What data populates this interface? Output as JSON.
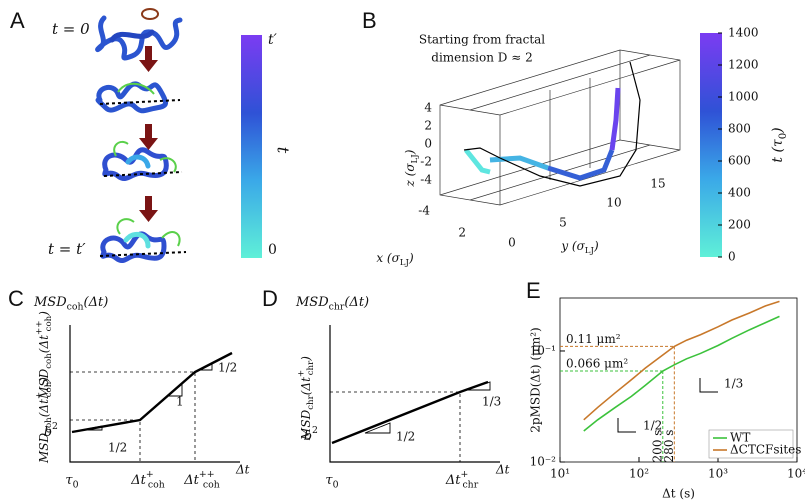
{
  "panel_labels": [
    "A",
    "B",
    "C",
    "D",
    "E"
  ],
  "panel_a": {
    "t_start": "t = 0",
    "t_end": "t = t′",
    "colorbar": {
      "label": "t",
      "top": "t′",
      "bottom": "0"
    }
  },
  "panel_b": {
    "annotation": [
      "Starting from fractal",
      "dimension D ≈ 2"
    ],
    "z_label": [
      {
        "text": "z (σ"
      },
      {
        "sub": "LJ"
      },
      {
        "text": ")"
      }
    ],
    "x_label": [
      {
        "text": "x (σ"
      },
      {
        "sub": "LJ"
      },
      {
        "text": ")"
      }
    ],
    "y_label": [
      {
        "text": "y (σ"
      },
      {
        "sub": "LJ"
      },
      {
        "text": ")"
      }
    ],
    "z_ticks": [
      "4",
      "2",
      "0",
      "-2",
      "-4"
    ],
    "x_ticks": [
      "-4",
      "2"
    ],
    "y_ticks": [
      "0",
      "5",
      "10",
      "15"
    ],
    "colorbar": {
      "label": [
        {
          "text": "t (τ"
        },
        {
          "sub": "0"
        },
        {
          "text": ")"
        }
      ],
      "lim": [
        0,
        1400
      ],
      "ticks": [
        0,
        200,
        400,
        600,
        800,
        1000,
        1200,
        1400
      ]
    }
  },
  "panel_c": {
    "y_title": [
      {
        "text": "MSD"
      },
      {
        "sub": "coh"
      },
      {
        "text": "(Δt)"
      }
    ],
    "y_tick_low": [
      {
        "text": "b"
      },
      {
        "sup": "2"
      }
    ],
    "y_tick_mid": [
      {
        "text": "MSD"
      },
      {
        "sub": "coh"
      },
      {
        "text": "(Δt"
      },
      {
        "sup": "+"
      },
      {
        "sub": "coh"
      },
      {
        "text": ")"
      }
    ],
    "y_tick_high": [
      {
        "text": "MSD"
      },
      {
        "sub": "coh"
      },
      {
        "text": "(Δt"
      },
      {
        "sup": "++"
      },
      {
        "sub": "coh"
      },
      {
        "text": ")"
      }
    ],
    "x_tick_low": [
      {
        "text": "τ"
      },
      {
        "sub": "0"
      }
    ],
    "x_tick_mid": [
      {
        "text": "Δt"
      },
      {
        "sup": "+"
      },
      {
        "sub": "coh"
      }
    ],
    "x_tick_high": [
      {
        "text": "Δt"
      },
      {
        "sup": "++"
      },
      {
        "sub": "coh"
      }
    ],
    "x_title": "Δt",
    "slopes": [
      "1/2",
      "1",
      "1/2"
    ]
  },
  "panel_d": {
    "y_title": [
      {
        "text": "MSD"
      },
      {
        "sub": "chr"
      },
      {
        "text": "(Δt)"
      }
    ],
    "y_tick_low": [
      {
        "text": "b"
      },
      {
        "sup": "2"
      }
    ],
    "y_tick_mid": [
      {
        "text": "MSD"
      },
      {
        "sub": "chr"
      },
      {
        "text": "(Δt"
      },
      {
        "sup": "+"
      },
      {
        "sub": "chr"
      },
      {
        "text": ")"
      }
    ],
    "x_tick_low": [
      {
        "text": "τ"
      },
      {
        "sub": "0"
      }
    ],
    "x_tick_mid": [
      {
        "text": "Δt"
      },
      {
        "sup": "+"
      },
      {
        "sub": "chr"
      }
    ],
    "x_title": "Δt",
    "slopes": [
      "1/2",
      "1/3"
    ]
  },
  "chart_data": {
    "type": "line",
    "log_x": true,
    "log_y": true,
    "x_label": "Δt (s)",
    "y_label": "2pMSD(Δt) (μm²)",
    "x": [
      20,
      30,
      50,
      80,
      120,
      200,
      280,
      400,
      600,
      1000,
      1500,
      2500,
      4000,
      6000
    ],
    "series": [
      {
        "name": "WT",
        "color": "#3cc23c",
        "values": [
          0.019,
          0.024,
          0.031,
          0.039,
          0.049,
          0.066,
          0.075,
          0.085,
          0.095,
          0.112,
          0.13,
          0.155,
          0.18,
          0.205
        ]
      },
      {
        "name": "ΔCTCFsites",
        "color": "#c8782a",
        "values": [
          0.024,
          0.031,
          0.042,
          0.055,
          0.07,
          0.092,
          0.11,
          0.125,
          0.14,
          0.165,
          0.19,
          0.22,
          0.255,
          0.28
        ]
      }
    ],
    "xlim": [
      10,
      10000
    ],
    "xticks": [
      {
        "value": 10,
        "label": "10¹"
      },
      {
        "value": 100,
        "label": "10²"
      },
      {
        "value": 1000,
        "label": "10³"
      },
      {
        "value": 10000,
        "label": "10⁴"
      }
    ],
    "ylim": [
      0.01,
      0.3
    ],
    "yticks": [
      {
        "value": 0.01,
        "label": "10⁻²"
      },
      {
        "value": 0.1,
        "label": "10⁻¹"
      }
    ],
    "markers": [
      {
        "x": 280,
        "y": 0.11,
        "y_label": "0.11 μm²",
        "x_label": "280 s",
        "color": "#c8782a"
      },
      {
        "x": 200,
        "y": 0.066,
        "y_label": "0.066 μm²",
        "x_label": "200 s",
        "color": "#3cc23c"
      }
    ],
    "slope_labels": [
      "1/2",
      "1/3"
    ],
    "legend": "lower right"
  }
}
